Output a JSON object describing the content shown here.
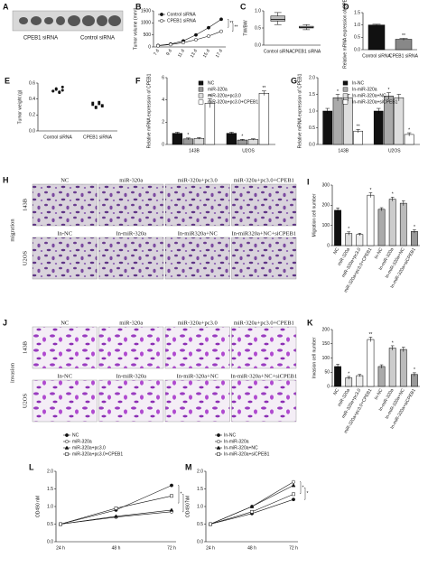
{
  "figure": {
    "panel_A": {
      "letter": "A",
      "labels": [
        "CPEB1 siRNA",
        "Control siRNA"
      ]
    },
    "panel_H": {
      "letter": "H",
      "side_label": "migration",
      "row_labels": [
        "143B",
        "U2OS"
      ],
      "column_labels": [
        [
          "NC",
          "miR-320a",
          "miR-320a+pc3.0",
          "miR-320a+pc3.0+CPEB1"
        ],
        [
          "In-NC",
          "In-miR-320a",
          "In-miR320a+NC",
          "In-miR320a+NC+siCPEB1"
        ]
      ]
    },
    "panel_J": {
      "letter": "J",
      "side_label": "invasion",
      "row_labels": [
        "143B",
        "U2OS"
      ],
      "column_labels": [
        [
          "NC",
          "miR-320a",
          "miR-320a+pc3.0",
          "miR-320a+pc3.0+CPEB1"
        ],
        [
          "In-NC",
          "In-miR-320a",
          "In-miR-320a+NC",
          "In-miR-320a+NC+siCPEB1"
        ]
      ]
    }
  },
  "chart_data": [
    {
      "type": "line",
      "panel": "B",
      "y_label": "Tumor volume (mm³)",
      "categories": [
        "7 d",
        "9 d",
        "11 d",
        "13 d",
        "15 d",
        "17 d"
      ],
      "rotate_labels": true,
      "series": [
        {
          "name": "Control siRNA",
          "color": "#111111",
          "values": [
            60,
            120,
            250,
            500,
            800,
            1150
          ]
        },
        {
          "name": "CPEB1 siRNA",
          "color": "#111111",
          "values": [
            50,
            100,
            180,
            300,
            450,
            650
          ]
        }
      ],
      "annotations": [
        "**",
        "**"
      ],
      "ylim": [
        0,
        1500
      ],
      "yticks": [
        0,
        500,
        1000,
        1500
      ]
    },
    {
      "type": "box",
      "panel": "C",
      "y_label": "TW/BW",
      "categories": [
        "Control siRNA",
        "CPEB1 siRNA"
      ],
      "boxes": [
        {
          "min": 0.6,
          "q1": 0.7,
          "median": 0.75,
          "q3": 0.85,
          "max": 0.95
        },
        {
          "min": 0.45,
          "q1": 0.5,
          "median": 0.52,
          "q3": 0.55,
          "max": 0.6
        }
      ],
      "color": "#bbbbbb",
      "ylim": [
        0,
        1
      ],
      "yticks": [
        {
          "value": 0,
          "label": "0.0"
        },
        {
          "value": 0.5,
          "label": "0.5"
        },
        {
          "value": 1,
          "label": "1.0"
        }
      ]
    },
    {
      "type": "bar",
      "panel": "D",
      "y_label": "Relative mRNA expression of CPEB1",
      "categories": [
        "Control siRNA",
        "CPEB1 siRNA"
      ],
      "values": [
        1.0,
        0.42
      ],
      "errors": [
        0.03,
        0.04
      ],
      "significance": [
        null,
        "**"
      ],
      "colors": [
        "#111111",
        "#888888"
      ],
      "ylim": [
        0,
        1.5
      ],
      "yticks": [
        {
          "value": 0,
          "label": "0.0"
        },
        {
          "value": 0.5,
          "label": "0.5"
        },
        {
          "value": 1,
          "label": "1.0"
        },
        {
          "value": 1.5,
          "label": "1.5"
        }
      ]
    },
    {
      "type": "dot",
      "panel": "E",
      "y_label": "Tumor weight (g)",
      "categories": [
        "Control siRNA",
        "CPEB1 siRNA"
      ],
      "groups": [
        [
          0.5,
          0.52,
          0.48,
          0.55,
          0.5,
          0.53,
          0.49,
          0.51
        ],
        [
          0.33,
          0.3,
          0.36,
          0.32,
          0.35,
          0.29,
          0.34,
          0.31
        ]
      ],
      "color": "#111111",
      "ylim": [
        0,
        0.6
      ],
      "yticks": [
        {
          "value": 0,
          "label": "0.0"
        },
        {
          "value": 0.2,
          "label": "0.2"
        },
        {
          "value": 0.4,
          "label": "0.4"
        },
        {
          "value": 0.6,
          "label": "0.6"
        }
      ]
    },
    {
      "type": "grouped_bar",
      "panel": "F",
      "y_label": "Relative mRNA expression of CPEB1",
      "categories": [
        "143B",
        "U2OS"
      ],
      "series": [
        {
          "name": "NC",
          "color": "#111111",
          "values": [
            1.0,
            1.0
          ],
          "errors": [
            0.1,
            0.1
          ],
          "significance": [
            null,
            null
          ]
        },
        {
          "name": "miR-320a",
          "color": "#999999",
          "values": [
            0.5,
            0.4
          ],
          "errors": [
            0.08,
            0.06
          ],
          "significance": [
            "*",
            "*"
          ]
        },
        {
          "name": "miR-320a+pc3.0",
          "color": "#dddddd",
          "values": [
            0.55,
            0.45
          ],
          "errors": [
            0.08,
            0.06
          ],
          "significance": [
            null,
            null
          ]
        },
        {
          "name": "miR-320a+pc3.0+CPEB1",
          "color": "#ffffff",
          "values": [
            3.7,
            4.6
          ],
          "errors": [
            0.4,
            0.2
          ],
          "significance": [
            "**",
            "**"
          ]
        }
      ],
      "ylim": [
        0,
        6
      ],
      "yticks": [
        0,
        2,
        4,
        6
      ]
    },
    {
      "type": "grouped_bar",
      "panel": "G",
      "y_label": "Relative mRNA expression of CPEB1",
      "categories": [
        "143B",
        "U2OS"
      ],
      "series": [
        {
          "name": "In-NC",
          "color": "#111111",
          "values": [
            1.0,
            1.0
          ],
          "errors": [
            0.08,
            0.08
          ],
          "significance": [
            null,
            null
          ]
        },
        {
          "name": "In-miR-320a",
          "color": "#aaaaaa",
          "values": [
            1.4,
            1.45
          ],
          "errors": [
            0.1,
            0.1
          ],
          "significance": [
            "*",
            "*"
          ]
        },
        {
          "name": "In-miR-320a+NC",
          "color": "#dddddd",
          "values": [
            1.4,
            1.4
          ],
          "errors": [
            0.1,
            0.1
          ],
          "significance": [
            null,
            null
          ]
        },
        {
          "name": "In-miR-320a+siCPEB1",
          "color": "#ffffff",
          "values": [
            0.4,
            0.3
          ],
          "errors": [
            0.05,
            0.05
          ],
          "significance": [
            "**",
            "*"
          ]
        }
      ],
      "ylim": [
        0,
        2
      ],
      "yticks": [
        {
          "value": 0,
          "label": "0.0"
        },
        {
          "value": 0.5,
          "label": "0.5"
        },
        {
          "value": 1,
          "label": "1.0"
        },
        {
          "value": 1.5,
          "label": "1.5"
        },
        {
          "value": 2,
          "label": "2.0"
        }
      ]
    },
    {
      "type": "bar",
      "panel": "I",
      "y_label": "Migration cell number",
      "rotate_labels": true,
      "categories": [
        "NC",
        "miR-320a",
        "miR-320a+pc3.0",
        "miR-320a+pc3.0+CPEB1",
        "In-NC",
        "In-miR-320a",
        "In-miR-320a+NC",
        "In-miR-320a+siCPEB1"
      ],
      "values": [
        175,
        60,
        55,
        250,
        180,
        230,
        210,
        70
      ],
      "errors": [
        12,
        8,
        6,
        12,
        8,
        10,
        12,
        8
      ],
      "significance": [
        null,
        "*",
        null,
        "*",
        null,
        "*",
        null,
        "*"
      ],
      "colors": [
        "#111111",
        "#dddddd",
        "#eeeeee",
        "#ffffff",
        "#aaaaaa",
        "#cccccc",
        "#bbbbbb",
        "#999999"
      ],
      "ylim": [
        0,
        300
      ],
      "yticks": [
        0,
        100,
        200,
        300
      ]
    },
    {
      "type": "bar",
      "panel": "K",
      "y_label": "Invasion cell number",
      "rotate_labels": true,
      "categories": [
        "NC",
        "miR-320a",
        "miR-320a+pc3.0",
        "miR-320a+pc3.0+CPEB1",
        "In-NC",
        "In-miR-320a",
        "In-miR-320a+NC",
        "In-miR-320a+siCPEB1"
      ],
      "values": [
        70,
        30,
        38,
        165,
        70,
        135,
        130,
        42
      ],
      "errors": [
        8,
        5,
        4,
        8,
        6,
        8,
        8,
        6
      ],
      "significance": [
        null,
        "*",
        null,
        "**",
        null,
        "*",
        null,
        "*"
      ],
      "colors": [
        "#111111",
        "#dddddd",
        "#eeeeee",
        "#ffffff",
        "#aaaaaa",
        "#cccccc",
        "#bbbbbb",
        "#999999"
      ],
      "ylim": [
        0,
        200
      ],
      "yticks": [
        0,
        50,
        100,
        150,
        200
      ]
    },
    {
      "type": "line",
      "panel": "L",
      "y_label": "OD490 nM",
      "categories": [
        "24 h",
        "48 h",
        "72 h"
      ],
      "series": [
        {
          "name": "NC",
          "color": "#111111",
          "values": [
            0.5,
            0.9,
            1.6
          ]
        },
        {
          "name": "miR-320a",
          "color": "#111111",
          "values": [
            0.5,
            0.7,
            0.85
          ]
        },
        {
          "name": "miR-320a+pc3.0",
          "color": "#111111",
          "values": [
            0.5,
            0.72,
            0.9
          ]
        },
        {
          "name": "miR-320a+pc3.0+CPEB1",
          "color": "#111111",
          "values": [
            0.5,
            0.95,
            1.3
          ]
        }
      ],
      "annotations": [
        "*",
        "*"
      ],
      "ylim": [
        0,
        2
      ],
      "yticks": [
        {
          "value": 0,
          "label": "0.0"
        },
        {
          "value": 0.5,
          "label": "0.5"
        },
        {
          "value": 1,
          "label": "1.0"
        },
        {
          "value": 1.5,
          "label": "1.5"
        },
        {
          "value": 2,
          "label": "2.0"
        }
      ]
    },
    {
      "type": "line",
      "panel": "M",
      "y_label": "OD490 nM",
      "categories": [
        "24 h",
        "48 h",
        "72 h"
      ],
      "series": [
        {
          "name": "In-NC",
          "color": "#111111",
          "values": [
            0.5,
            0.8,
            1.2
          ]
        },
        {
          "name": "In-miR-320a",
          "color": "#111111",
          "values": [
            0.5,
            1.0,
            1.7
          ]
        },
        {
          "name": "In-miR-320a+NC",
          "color": "#111111",
          "values": [
            0.5,
            1.0,
            1.6
          ]
        },
        {
          "name": "In-miR-320a+siCPEB1",
          "color": "#111111",
          "values": [
            0.5,
            0.85,
            1.35
          ]
        }
      ],
      "annotations": [
        "*",
        "*"
      ],
      "ylim": [
        0,
        2
      ],
      "yticks": [
        {
          "value": 0,
          "label": "0.0"
        },
        {
          "value": 0.5,
          "label": "0.5"
        },
        {
          "value": 1,
          "label": "1.0"
        },
        {
          "value": 1.5,
          "label": "1.5"
        },
        {
          "value": 2,
          "label": "2.0"
        }
      ]
    }
  ]
}
